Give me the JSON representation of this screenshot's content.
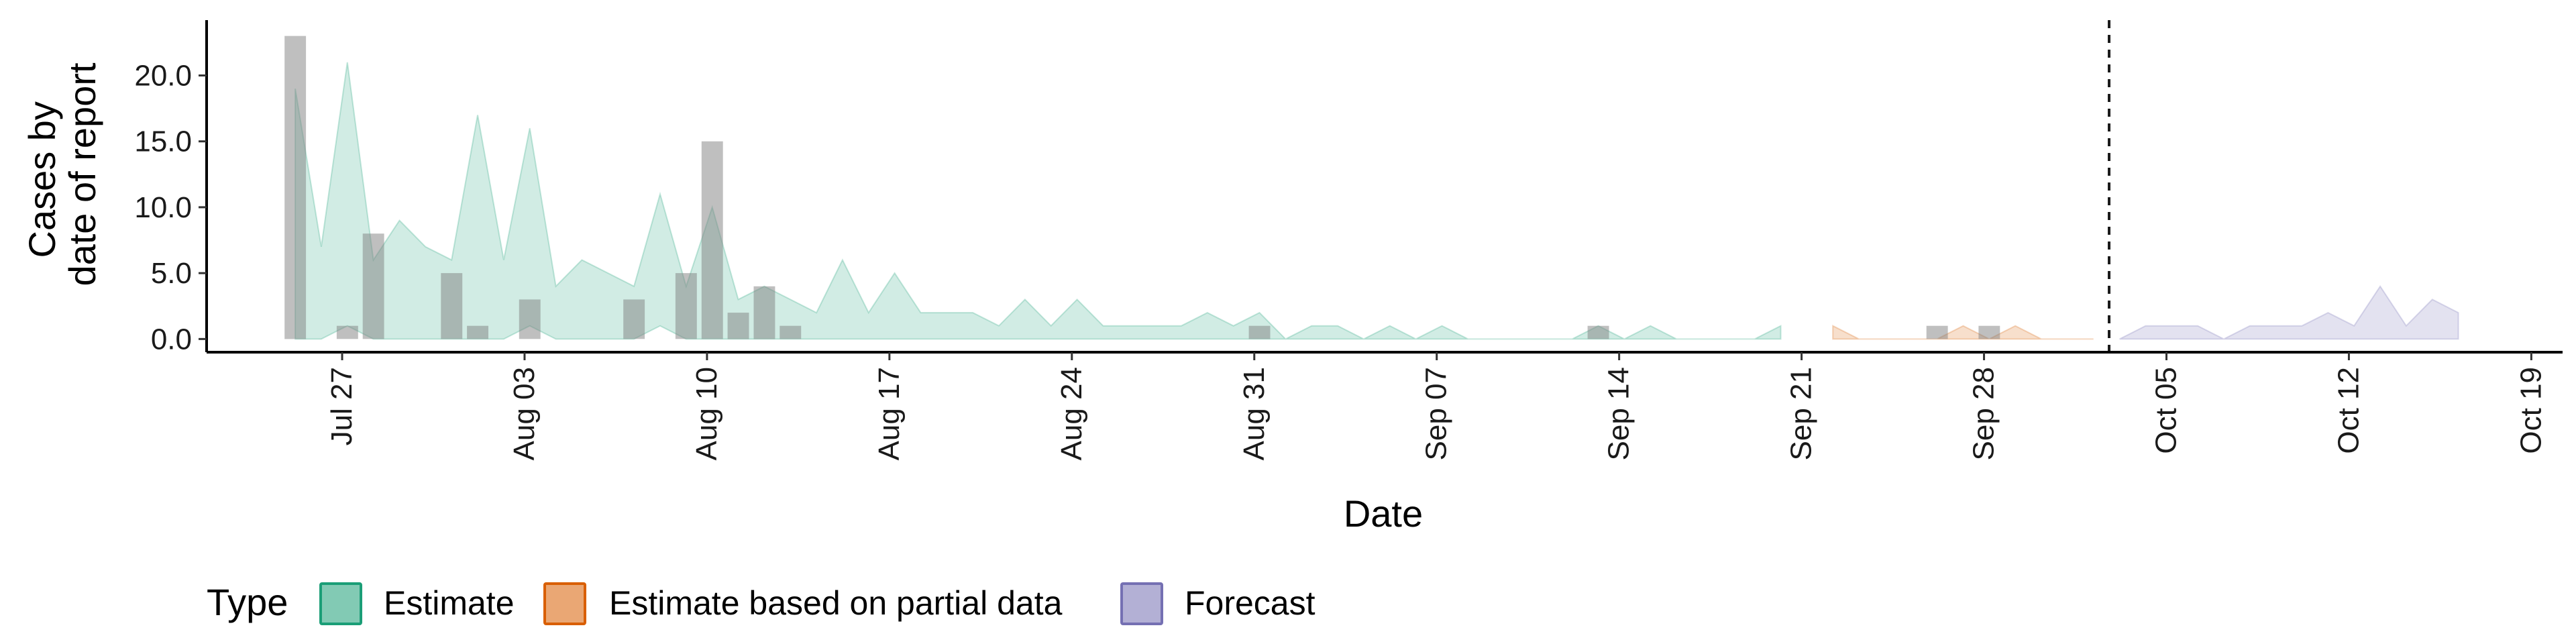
{
  "chart_data": {
    "type": "area",
    "xlabel": "Date",
    "ylabel_lines": [
      "Cases by",
      "date of report"
    ],
    "x_ticks": [
      {
        "label": "Jul 27",
        "day": 0
      },
      {
        "label": "Aug 03",
        "day": 7
      },
      {
        "label": "Aug 10",
        "day": 14
      },
      {
        "label": "Aug 17",
        "day": 21
      },
      {
        "label": "Aug 24",
        "day": 28
      },
      {
        "label": "Aug 31",
        "day": 35
      },
      {
        "label": "Sep 07",
        "day": 42
      },
      {
        "label": "Sep 14",
        "day": 49
      },
      {
        "label": "Sep 21",
        "day": 56
      },
      {
        "label": "Sep 28",
        "day": 63
      },
      {
        "label": "Oct 05",
        "day": 70
      },
      {
        "label": "Oct 12",
        "day": 77
      },
      {
        "label": "Oct 19",
        "day": 84
      }
    ],
    "y_ticks": [
      "0.0",
      "5.0",
      "10.0",
      "15.0",
      "20.0"
    ],
    "y_tick_values": [
      0,
      5,
      10,
      15,
      20
    ],
    "xlim": [
      -5.2,
      85.2
    ],
    "ylim": [
      -1.0,
      24.2
    ],
    "forecast_date_day": 67.8,
    "bars": [
      {
        "day": -1.8,
        "value": 23
      },
      {
        "day": 0.2,
        "value": 1
      },
      {
        "day": 1.2,
        "value": 8
      },
      {
        "day": 4.2,
        "value": 5
      },
      {
        "day": 5.2,
        "value": 1
      },
      {
        "day": 7.2,
        "value": 3
      },
      {
        "day": 11.2,
        "value": 3
      },
      {
        "day": 13.2,
        "value": 5
      },
      {
        "day": 14.2,
        "value": 15
      },
      {
        "day": 15.2,
        "value": 2
      },
      {
        "day": 16.2,
        "value": 4
      },
      {
        "day": 17.2,
        "value": 1
      },
      {
        "day": 35.2,
        "value": 1
      },
      {
        "day": 48.2,
        "value": 1
      },
      {
        "day": 61.2,
        "value": 1
      },
      {
        "day": 63.2,
        "value": 1
      }
    ],
    "series": [
      {
        "name": "Estimate",
        "color": "#1b9e77",
        "x": [
          -1.8,
          -0.8,
          0.2,
          1.2,
          2.2,
          3.2,
          4.2,
          5.2,
          6.2,
          7.2,
          8.2,
          9.2,
          10.2,
          11.2,
          12.2,
          13.2,
          14.2,
          15.2,
          16.2,
          17.2,
          18.2,
          19.2,
          20.2,
          21.2,
          22.2,
          23.2,
          24.2,
          25.2,
          26.2,
          27.2,
          28.2,
          29.2,
          30.2,
          31.2,
          32.2,
          33.2,
          34.2,
          35.2,
          36.2,
          37.2,
          38.2,
          39.2,
          40.2,
          41.2,
          42.2,
          43.2,
          44.2,
          45.2,
          46.2,
          47.2,
          48.2,
          49.2,
          50.2,
          51.2,
          52.2,
          53.2,
          54.2,
          55.2
        ],
        "upper": [
          19,
          7,
          21,
          6,
          9,
          7,
          6,
          17,
          6,
          16,
          4,
          6,
          5,
          4,
          11,
          4,
          10,
          3,
          4,
          3,
          2,
          6,
          2,
          5,
          2,
          2,
          2,
          1,
          3,
          1,
          3,
          1,
          1,
          1,
          1,
          2,
          1,
          2,
          0,
          1,
          1,
          0,
          1,
          0,
          1,
          0,
          0,
          0,
          0,
          0,
          1,
          0,
          1,
          0,
          0,
          0,
          0,
          1
        ],
        "lower": [
          0,
          0,
          1,
          0,
          0,
          0,
          0,
          0,
          0,
          1,
          0,
          0,
          0,
          0,
          1,
          0,
          0,
          0,
          0,
          0,
          0,
          0,
          0,
          0,
          0,
          0,
          0,
          0,
          0,
          0,
          0,
          0,
          0,
          0,
          0,
          0,
          0,
          0,
          0,
          0,
          0,
          0,
          0,
          0,
          0,
          0,
          0,
          0,
          0,
          0,
          0,
          0,
          0,
          0,
          0,
          0,
          0,
          0
        ]
      },
      {
        "name": "Estimate based on partial data",
        "color": "#d95f02",
        "x": [
          57.2,
          58.2,
          59.2,
          60.2,
          61.2,
          62.2,
          63.2,
          64.2,
          65.2,
          66.2,
          67.2
        ],
        "upper": [
          1,
          0,
          0,
          0,
          0,
          1,
          0,
          1,
          0,
          0,
          0
        ],
        "lower": [
          0,
          0,
          0,
          0,
          0,
          0,
          0,
          0,
          0,
          0,
          0
        ]
      },
      {
        "name": "Forecast",
        "color": "#7570b3",
        "x": [
          68.2,
          69.2,
          70.2,
          71.2,
          72.2,
          73.2,
          74.2,
          75.2,
          76.2,
          77.2,
          78.2,
          79.2,
          80.2,
          81.2
        ],
        "upper": [
          0,
          1,
          1,
          1,
          0,
          1,
          1,
          1,
          2,
          1,
          4,
          1,
          3,
          2
        ],
        "lower": [
          0,
          0,
          0,
          0,
          0,
          0,
          0,
          0,
          0,
          0,
          0,
          0,
          0,
          0
        ]
      }
    ],
    "legend": {
      "title": "Type",
      "placement": "bottom-left",
      "items": [
        {
          "label": "Estimate",
          "color": "#1b9e77"
        },
        {
          "label": "Estimate based on partial data",
          "color": "#d95f02"
        },
        {
          "label": "Forecast",
          "color": "#7570b3"
        }
      ]
    },
    "grid": false
  }
}
